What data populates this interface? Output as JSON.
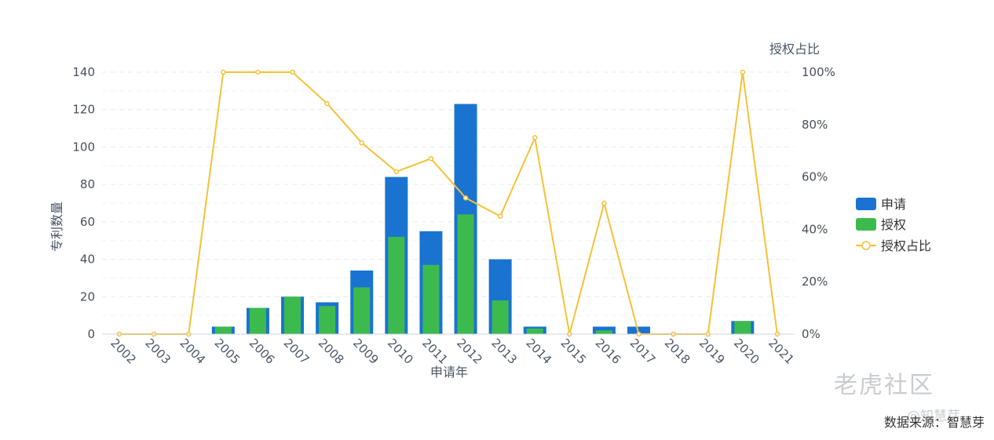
{
  "chart_data": {
    "type": "bar",
    "categories": [
      "2002",
      "2003",
      "2004",
      "2005",
      "2006",
      "2007",
      "2008",
      "2009",
      "2010",
      "2011",
      "2012",
      "2013",
      "2014",
      "2015",
      "2016",
      "2017",
      "2018",
      "2019",
      "2020",
      "2021"
    ],
    "series": [
      {
        "name": "申请",
        "type": "bar",
        "color": "#1a73d1",
        "axis": "left",
        "values": [
          0,
          0,
          0,
          4,
          14,
          20,
          17,
          34,
          84,
          55,
          123,
          40,
          4,
          0,
          4,
          4,
          0,
          0,
          7,
          0
        ]
      },
      {
        "name": "授权",
        "type": "bar",
        "color": "#3dba4e",
        "axis": "left",
        "values": [
          0,
          0,
          0,
          4,
          14,
          20,
          15,
          25,
          52,
          37,
          64,
          18,
          3,
          0,
          2,
          0,
          0,
          0,
          7,
          0
        ]
      },
      {
        "name": "授权占比",
        "type": "line",
        "color": "#f5c236",
        "axis": "right",
        "values": [
          0,
          0,
          0,
          100,
          100,
          100,
          88,
          73,
          62,
          67,
          52,
          45,
          75,
          0,
          50,
          0,
          0,
          0,
          100,
          0
        ]
      }
    ],
    "xlabel": "申请年",
    "ylabel": "专利数量",
    "y2label": "授权占比",
    "ylim": [
      0,
      140
    ],
    "yticks": [
      0,
      20,
      40,
      60,
      80,
      100,
      120,
      140
    ],
    "y2lim": [
      0,
      100
    ],
    "y2ticks": [
      "0%",
      "20%",
      "40%",
      "60%",
      "80%",
      "100%"
    ],
    "grid": true,
    "legend_position": "right"
  },
  "source_text": "数据来源：智慧芽",
  "watermark_text": "老虎社区",
  "watermark_sub": "@知慧芽"
}
